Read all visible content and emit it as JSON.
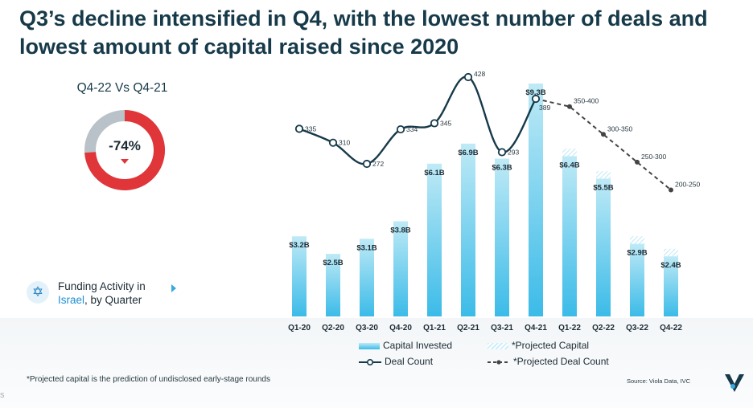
{
  "title": "Q3’s decline intensified in Q4, with the lowest number of deals and lowest amount of capital raised since 2020",
  "comparison": {
    "title": "Q4-22 Vs Q4-21",
    "value": "-74%",
    "fraction": 0.74,
    "colors": {
      "decline": "#e0363a",
      "remaining": "#b8c2c8"
    }
  },
  "activity": {
    "label_prefix": "Funding Activity in",
    "label_highlight": "Israel",
    "label_suffix": ", by Quarter",
    "icon": "star-of-david-icon"
  },
  "chart_data": {
    "type": "bar",
    "categories": [
      "Q1-20",
      "Q2-20",
      "Q3-20",
      "Q4-20",
      "Q1-21",
      "Q2-21",
      "Q3-21",
      "Q4-21",
      "Q1-22",
      "Q2-22",
      "Q3-22",
      "Q4-22"
    ],
    "capital_invested": [
      3.2,
      2.5,
      3.1,
      3.8,
      6.1,
      6.9,
      6.3,
      9.3,
      6.4,
      5.5,
      2.9,
      2.4
    ],
    "projected_capital_addition": [
      0,
      0,
      0,
      0,
      0,
      0,
      0,
      0,
      0.3,
      0.3,
      0.3,
      0.3
    ],
    "capital_labels": [
      "$3.2B",
      "$2.5B",
      "$3.1B",
      "$3.8B",
      "$6.1B",
      "$6.9B",
      "$6.3B",
      "$9.3B",
      "$6.4B",
      "$5.5B",
      "$2.9B",
      "$2.4B"
    ],
    "capital_unit": "$B",
    "capital_ylim": [
      0,
      10
    ],
    "deal_count": [
      335,
      310,
      272,
      334,
      345,
      428,
      293,
      389
    ],
    "deal_count_labels": [
      "335",
      "310",
      "272",
      "334",
      "345",
      "428",
      "293",
      "389"
    ],
    "projected_deal_count": [
      389,
      375,
      325,
      275,
      225
    ],
    "projected_deal_labels": [
      "350-400",
      "300-350",
      "250-300",
      "200-250"
    ],
    "deal_ylim": [
      150,
      430
    ],
    "legend": {
      "capital": "Capital Invested",
      "projected_capital": "*Projected Capital",
      "deal_count": "Deal Count",
      "projected_deal_count": "*Projected Deal Count"
    },
    "colors": {
      "bar_top": "#bfeaf6",
      "bar_bottom": "#3bbbe8",
      "line": "#173a4a",
      "projected_line": "#444444"
    }
  },
  "footnote": "*Projected capital is the prediction of undisclosed early-stage rounds",
  "source": "Source: Viola Data, IVC",
  "corner_mark": "S"
}
